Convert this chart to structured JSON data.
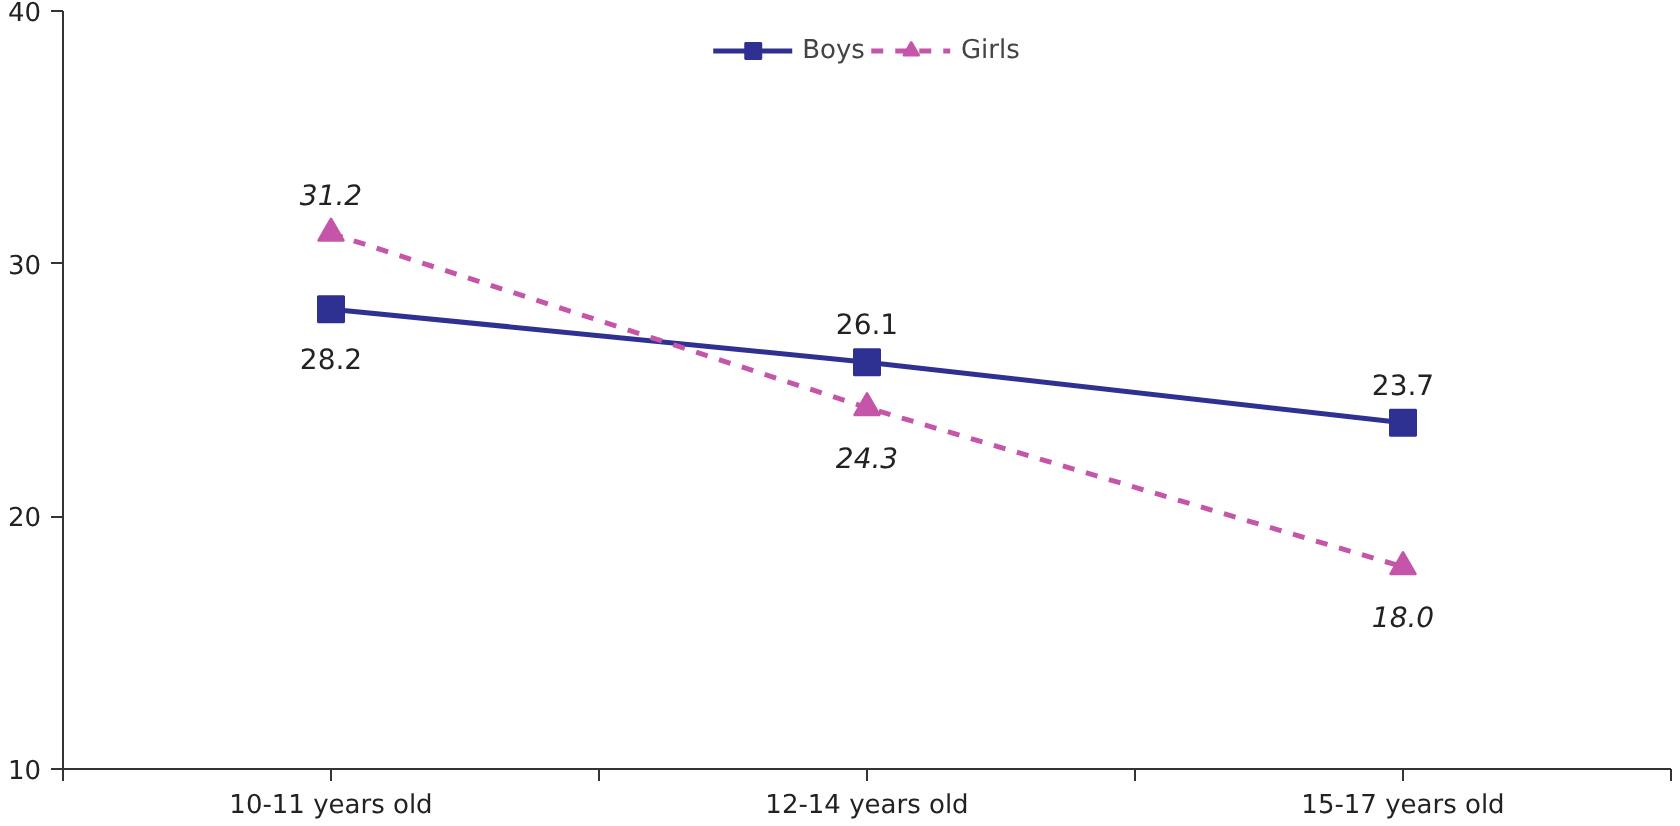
{
  "chart_data": {
    "type": "line",
    "categories": [
      "10-11 years old",
      "12-14 years old",
      "15-17 years old"
    ],
    "series": [
      {
        "name": "Boys",
        "color": "#2e3192",
        "values": [
          28.2,
          26.1,
          23.7
        ],
        "marker": "square",
        "line_style": "solid",
        "value_labels": [
          "28.2",
          "26.1",
          "23.7"
        ]
      },
      {
        "name": "Girls",
        "color": "#c455a8",
        "values": [
          31.2,
          24.3,
          18.0
        ],
        "marker": "triangle",
        "line_style": "dashed",
        "value_labels": [
          "31.2",
          "24.3",
          "18.0"
        ]
      }
    ],
    "ylim": [
      10,
      40
    ],
    "yticks": [
      10,
      20,
      30,
      40
    ],
    "grid": false,
    "legend": "top"
  }
}
